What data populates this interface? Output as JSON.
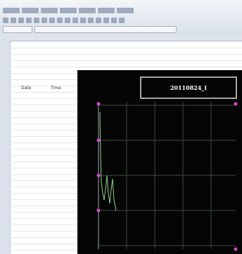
{
  "sheet": {
    "headers": [
      "Date",
      "Time"
    ]
  },
  "chart": {
    "title": "20110824_I"
  }
}
